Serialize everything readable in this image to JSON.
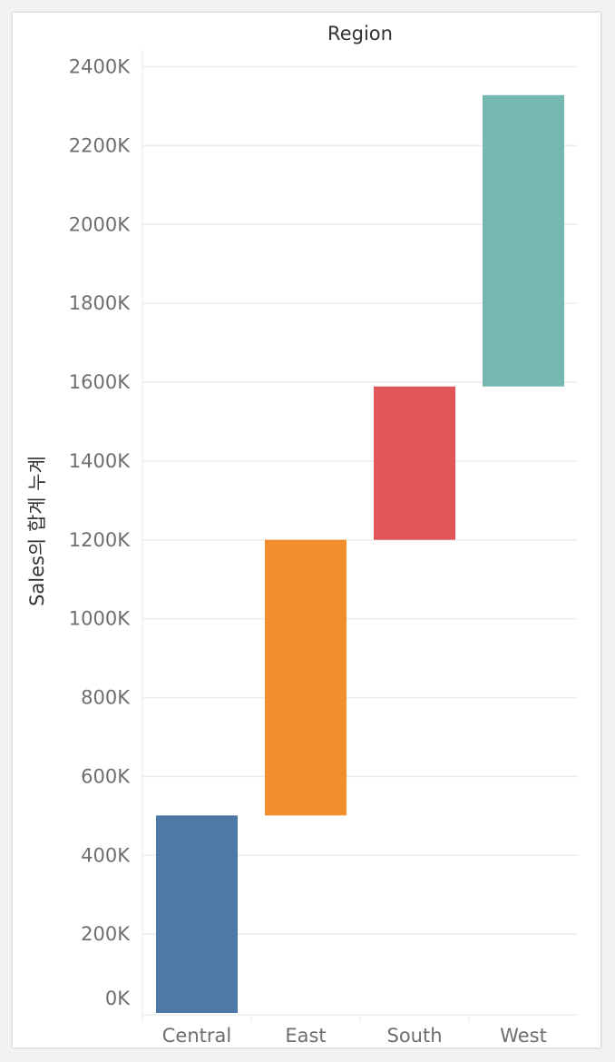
{
  "chart_data": {
    "type": "bar",
    "variant": "waterfall",
    "title": "Region",
    "xlabel": "",
    "ylabel": "Sales의 합계 누계",
    "categories": [
      "Central",
      "East",
      "South",
      "West"
    ],
    "series": [
      {
        "start": 0,
        "end": 501,
        "color": "#4e79a7"
      },
      {
        "start": 501,
        "end": 1200,
        "color": "#f28e2b"
      },
      {
        "start": 1200,
        "end": 1589,
        "color": "#e15759"
      },
      {
        "start": 1589,
        "end": 2328,
        "color": "#76b7b2"
      }
    ],
    "yticks": [
      "0K",
      "200K",
      "400K",
      "600K",
      "800K",
      "1000K",
      "1200K",
      "1400K",
      "1600K",
      "1800K",
      "2000K",
      "2200K",
      "2400K"
    ],
    "ylim": [
      0,
      2400
    ],
    "grid": true,
    "legend": "none"
  }
}
